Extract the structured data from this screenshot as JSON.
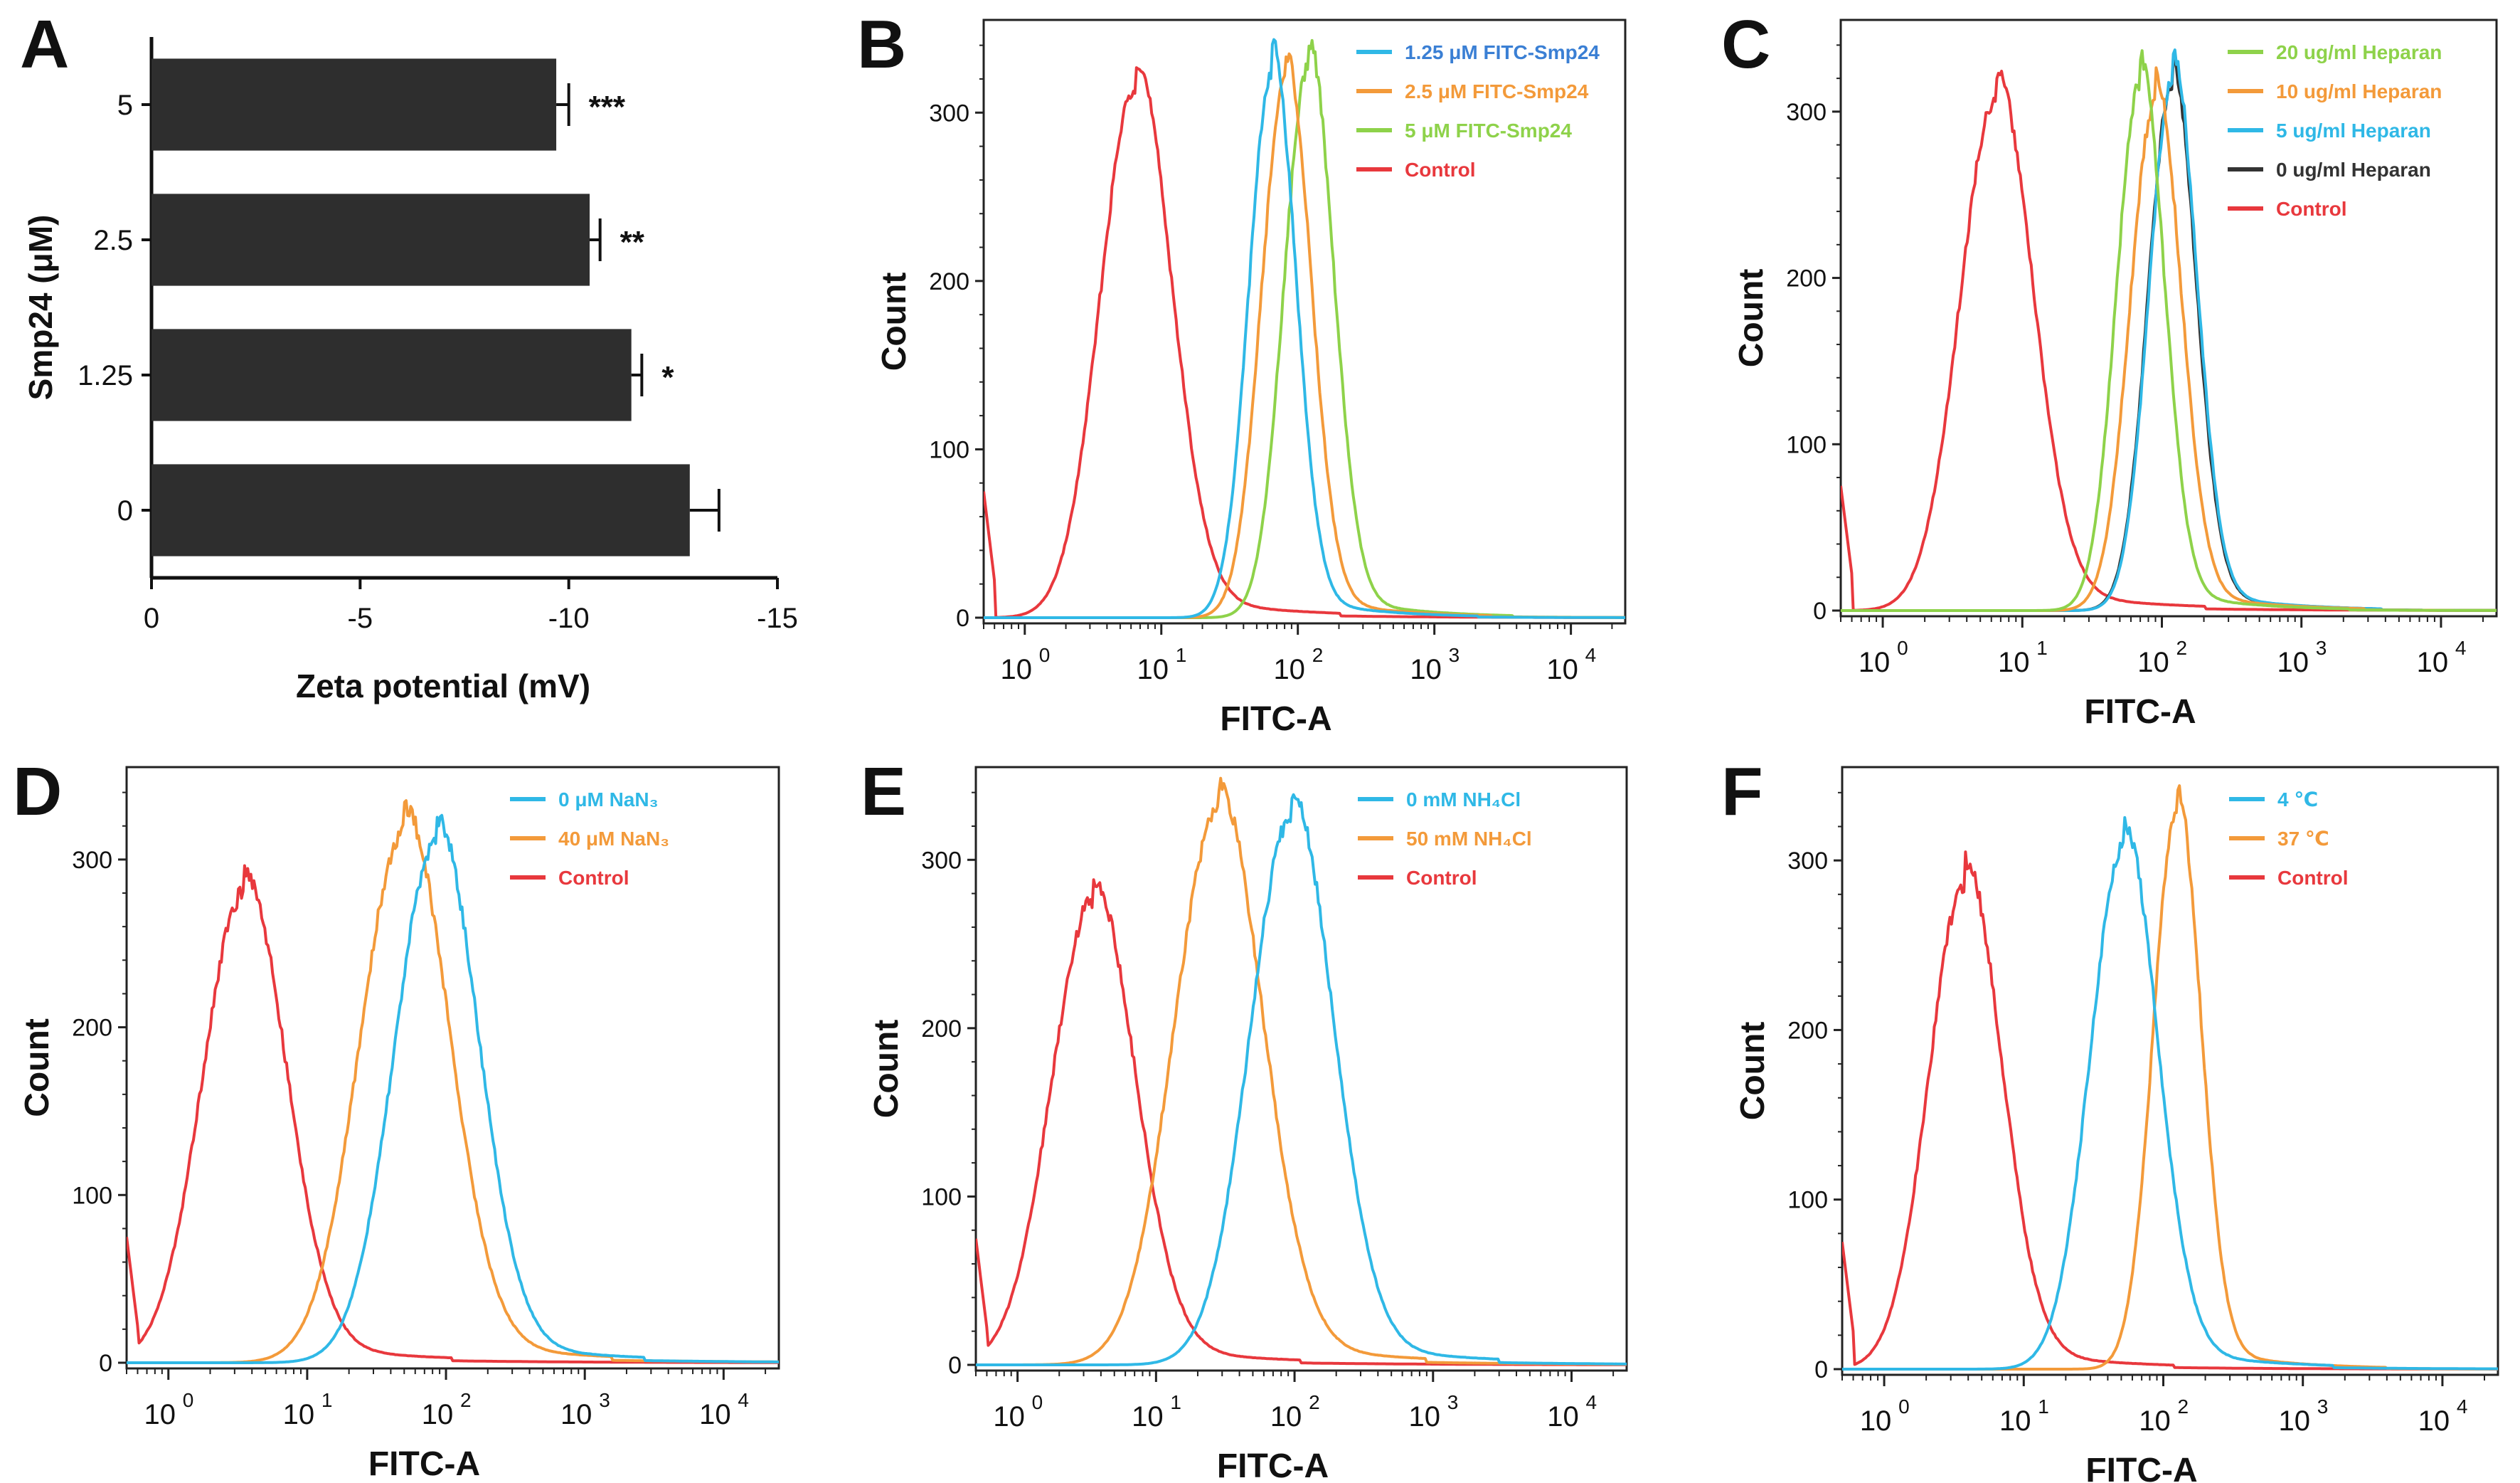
{
  "figure_title": "",
  "chart_data": [
    {
      "panel": "A",
      "type": "bar",
      "orientation": "horizontal",
      "title": "",
      "xlabel": "Zeta potential (mV)",
      "ylabel": "Smp24 (μM)",
      "categories": [
        "5",
        "2.5",
        "1.25",
        "0"
      ],
      "values": [
        -9.7,
        -10.5,
        -11.5,
        -12.9
      ],
      "errors": [
        0.3,
        0.25,
        0.25,
        0.7
      ],
      "significance": [
        "***",
        "**",
        "*",
        ""
      ],
      "xlim": [
        0,
        -15
      ],
      "xticks": [
        0,
        -5,
        -10,
        -15
      ],
      "xtick_labels": [
        "0",
        "-5",
        "-10",
        "-15"
      ],
      "bar_color": "#2e2e2e"
    },
    {
      "panel": "B",
      "type": "line",
      "xlabel": "FITC-A",
      "ylabel": "Count",
      "xscale": "log",
      "xlim": [
        0.5,
        25000
      ],
      "ylim": [
        0,
        350
      ],
      "yticks": [
        0,
        100,
        200,
        300
      ],
      "xticks": [
        1,
        10,
        100,
        1000,
        10000
      ],
      "xtick_bases": [
        "10",
        "10",
        "10",
        "10",
        "10"
      ],
      "xtick_exps": [
        "0",
        "1",
        "2",
        "3",
        "4"
      ],
      "legend_position": "top-right",
      "series": [
        {
          "name": "1.25 μM FITC-Smp24",
          "color": "#2fb8e6",
          "label_color": "#3a7fd4",
          "peak_x": 65,
          "peak_y": 325,
          "width": 0.17
        },
        {
          "name": "2.5 μM FITC-Smp24",
          "color": "#f39a3a",
          "label_color": "#f39a3a",
          "peak_x": 82,
          "peak_y": 320,
          "width": 0.18
        },
        {
          "name": "5 μM FITC-Smp24",
          "color": "#8ed24a",
          "label_color": "#8ed24a",
          "peak_x": 120,
          "peak_y": 328,
          "width": 0.18
        },
        {
          "name": "Control",
          "color": "#e8383d",
          "label_color": "#e8383d",
          "peak_x": 6.5,
          "peak_y": 316,
          "width": 0.26
        }
      ]
    },
    {
      "panel": "C",
      "type": "line",
      "xlabel": "FITC-A",
      "ylabel": "Count",
      "xscale": "log",
      "xlim": [
        0.5,
        25000
      ],
      "ylim": [
        0,
        350
      ],
      "yticks": [
        0,
        100,
        200,
        300
      ],
      "xticks": [
        1,
        10,
        100,
        1000,
        10000
      ],
      "xtick_bases": [
        "10",
        "10",
        "10",
        "10",
        "10"
      ],
      "xtick_exps": [
        "0",
        "1",
        "2",
        "3",
        "4"
      ],
      "legend_position": "top-right",
      "series": [
        {
          "name": "20 ug/ml Heparan",
          "color": "#8ed24a",
          "label_color": "#8ed24a",
          "peak_x": 70,
          "peak_y": 318,
          "width": 0.17
        },
        {
          "name": "10 ug/ml Heparan",
          "color": "#f39a3a",
          "label_color": "#f39a3a",
          "peak_x": 90,
          "peak_y": 307,
          "width": 0.18
        },
        {
          "name": "5 ug/ml Heparan",
          "color": "#2fb8e6",
          "label_color": "#2fb8e6",
          "peak_x": 120,
          "peak_y": 320,
          "width": 0.17
        },
        {
          "name": "0 ug/ml Heparan",
          "color": "#333333",
          "label_color": "#333333",
          "peak_x": 118,
          "peak_y": 316,
          "width": 0.17
        },
        {
          "name": "Control",
          "color": "#e8383d",
          "label_color": "#e8383d",
          "peak_x": 6.5,
          "peak_y": 308,
          "width": 0.26
        }
      ]
    },
    {
      "panel": "D",
      "type": "line",
      "xlabel": "FITC-A",
      "ylabel": "Count",
      "xscale": "log",
      "xlim": [
        0.5,
        25000
      ],
      "ylim": [
        0,
        350
      ],
      "yticks": [
        0,
        100,
        200,
        300
      ],
      "xticks": [
        1,
        10,
        100,
        1000,
        10000
      ],
      "xtick_bases": [
        "10",
        "10",
        "10",
        "10",
        "10"
      ],
      "xtick_exps": [
        "0",
        "1",
        "2",
        "3",
        "4"
      ],
      "legend_position": "top-right",
      "series": [
        {
          "name": "0 μM NaN₃",
          "color": "#2fb8e6",
          "label_color": "#2fb8e6",
          "peak_x": 85,
          "peak_y": 310,
          "width": 0.3
        },
        {
          "name": "40 μM NaN₃",
          "color": "#f39a3a",
          "label_color": "#f39a3a",
          "peak_x": 50,
          "peak_y": 316,
          "width": 0.32
        },
        {
          "name": "Control",
          "color": "#e8383d",
          "label_color": "#e8383d",
          "peak_x": 3.5,
          "peak_y": 280,
          "width": 0.3
        }
      ]
    },
    {
      "panel": "E",
      "type": "line",
      "xlabel": "FITC-A",
      "ylabel": "Count",
      "xscale": "log",
      "xlim": [
        0.5,
        25000
      ],
      "ylim": [
        0,
        350
      ],
      "yticks": [
        0,
        100,
        200,
        300
      ],
      "xticks": [
        1,
        10,
        100,
        1000,
        10000
      ],
      "xtick_bases": [
        "10",
        "10",
        "10",
        "10",
        "10"
      ],
      "xtick_exps": [
        "0",
        "1",
        "2",
        "3",
        "4"
      ],
      "legend_position": "top-right",
      "series": [
        {
          "name": "0 mM NH₄Cl",
          "color": "#2fb8e6",
          "label_color": "#2fb8e6",
          "peak_x": 95,
          "peak_y": 325,
          "width": 0.3
        },
        {
          "name": "50 mM NH₄Cl",
          "color": "#f39a3a",
          "label_color": "#f39a3a",
          "peak_x": 28,
          "peak_y": 328,
          "width": 0.32
        },
        {
          "name": "Control",
          "color": "#e8383d",
          "label_color": "#e8383d",
          "peak_x": 3.5,
          "peak_y": 276,
          "width": 0.3
        }
      ]
    },
    {
      "panel": "F",
      "type": "line",
      "xlabel": "FITC-A",
      "ylabel": "Count",
      "xscale": "log",
      "xlim": [
        0.5,
        25000
      ],
      "ylim": [
        0,
        350
      ],
      "yticks": [
        0,
        100,
        200,
        300
      ],
      "xticks": [
        1,
        10,
        100,
        1000,
        10000
      ],
      "xtick_bases": [
        "10",
        "10",
        "10",
        "10",
        "10"
      ],
      "xtick_exps": [
        "0",
        "1",
        "2",
        "3",
        "4"
      ],
      "legend_position": "top-right",
      "series": [
        {
          "name": "4 ℃",
          "color": "#2fb8e6",
          "label_color": "#2fb8e6",
          "peak_x": 52,
          "peak_y": 308,
          "width": 0.24
        },
        {
          "name": "37 ℃",
          "color": "#f39a3a",
          "label_color": "#f39a3a",
          "peak_x": 125,
          "peak_y": 328,
          "width": 0.17
        },
        {
          "name": "Control",
          "color": "#e8383d",
          "label_color": "#e8383d",
          "peak_x": 3.8,
          "peak_y": 286,
          "width": 0.26
        }
      ]
    }
  ]
}
